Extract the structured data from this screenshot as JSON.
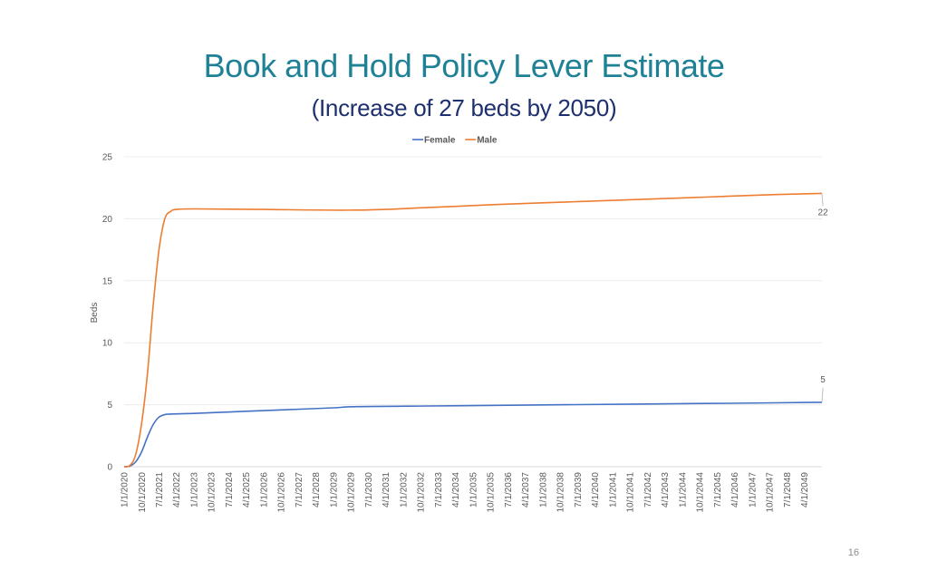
{
  "slide": {
    "title": "Book and Hold Policy Lever Estimate",
    "subtitle": "(Increase of 27 beds by 2050)",
    "page_number": "16"
  },
  "chart_data": {
    "type": "line",
    "title": "",
    "xlabel": "",
    "ylabel": "Beds",
    "ylim": [
      0,
      25
    ],
    "yticks": [
      0,
      5,
      10,
      15,
      20,
      25
    ],
    "grid": true,
    "legend_position": "top-center",
    "x_tick_labels": [
      "1/1/2020",
      "10/1/2020",
      "7/1/2021",
      "4/1/2022",
      "1/1/2023",
      "10/1/2023",
      "7/1/2024",
      "4/1/2025",
      "1/1/2026",
      "10/1/2026",
      "7/1/2027",
      "4/1/2028",
      "1/1/2029",
      "10/1/2029",
      "7/1/2030",
      "4/1/2031",
      "1/1/2032",
      "10/1/2032",
      "7/1/2033",
      "4/1/2034",
      "1/1/2035",
      "10/1/2035",
      "7/1/2036",
      "4/1/2037",
      "1/1/2038",
      "10/1/2038",
      "7/1/2039",
      "4/1/2040",
      "1/1/2041",
      "10/1/2041",
      "7/1/2042",
      "4/1/2043",
      "1/1/2044",
      "10/1/2044",
      "7/1/2045",
      "4/1/2046",
      "1/1/2047",
      "10/1/2047",
      "7/1/2048",
      "4/1/2049"
    ],
    "series": [
      {
        "name": "Female",
        "color": "#4472c4",
        "points": [
          [
            "1/1/2020",
            0.0
          ],
          [
            "4/1/2020",
            0.05
          ],
          [
            "7/1/2020",
            0.4
          ],
          [
            "10/1/2020",
            1.2
          ],
          [
            "1/1/2021",
            2.4
          ],
          [
            "4/1/2021",
            3.4
          ],
          [
            "7/1/2021",
            4.0
          ],
          [
            "10/1/2021",
            4.2
          ],
          [
            "1/1/2022",
            4.25
          ],
          [
            "1/1/2023",
            4.3
          ],
          [
            "1/1/2025",
            4.45
          ],
          [
            "1/1/2027",
            4.6
          ],
          [
            "1/1/2029",
            4.75
          ],
          [
            "1/1/2030",
            4.85
          ],
          [
            "1/1/2033",
            4.9
          ],
          [
            "1/1/2036",
            4.95
          ],
          [
            "1/1/2039",
            5.0
          ],
          [
            "1/1/2042",
            5.05
          ],
          [
            "1/1/2045",
            5.1
          ],
          [
            "1/1/2048",
            5.15
          ],
          [
            "1/1/2050",
            5.2
          ]
        ],
        "end_label": "5"
      },
      {
        "name": "Male",
        "color": "#ed7d31",
        "points": [
          [
            "1/1/2020",
            0.0
          ],
          [
            "4/1/2020",
            0.1
          ],
          [
            "7/1/2020",
            1.0
          ],
          [
            "10/1/2020",
            3.5
          ],
          [
            "1/1/2021",
            7.5
          ],
          [
            "4/1/2021",
            13.0
          ],
          [
            "7/1/2021",
            17.5
          ],
          [
            "10/1/2021",
            20.0
          ],
          [
            "1/1/2022",
            20.6
          ],
          [
            "4/1/2022",
            20.75
          ],
          [
            "1/1/2023",
            20.8
          ],
          [
            "1/1/2026",
            20.75
          ],
          [
            "1/1/2030",
            20.7
          ],
          [
            "1/1/2033",
            20.9
          ],
          [
            "1/1/2036",
            21.15
          ],
          [
            "1/1/2039",
            21.35
          ],
          [
            "1/1/2042",
            21.55
          ],
          [
            "1/1/2045",
            21.75
          ],
          [
            "1/1/2048",
            21.95
          ],
          [
            "1/1/2050",
            22.05
          ]
        ],
        "end_label": "22"
      }
    ]
  }
}
